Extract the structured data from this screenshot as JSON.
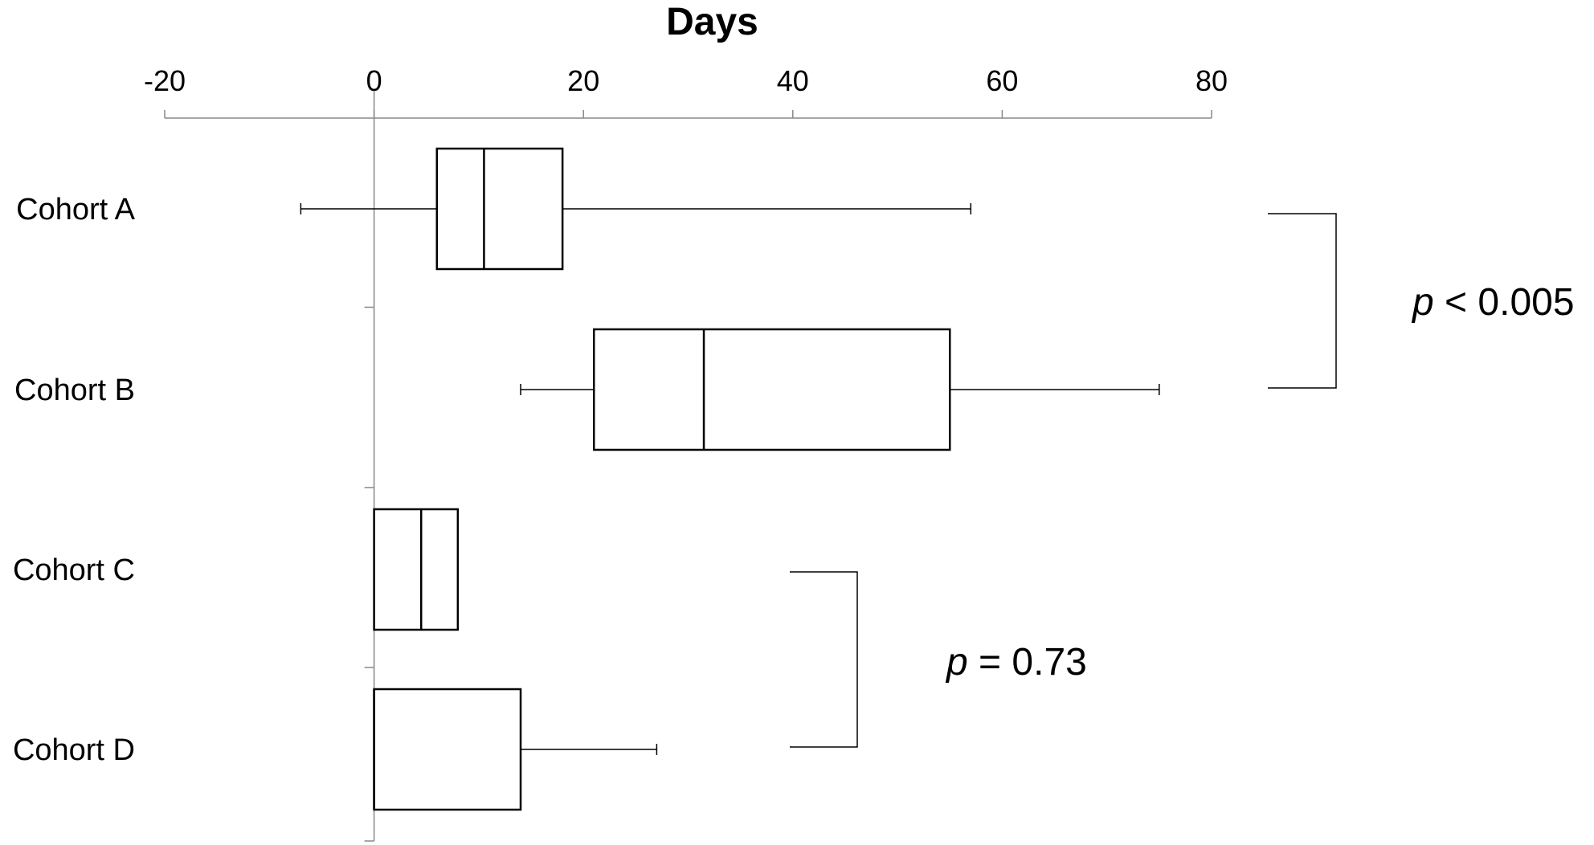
{
  "chart_data": {
    "type": "boxplot",
    "orientation": "horizontal",
    "xlabel": "Days",
    "xlim": [
      -20,
      80
    ],
    "xticks": [
      -20,
      0,
      20,
      40,
      60,
      80
    ],
    "xtick_labels": [
      "-20",
      "0",
      "20",
      "40",
      "60",
      "80"
    ],
    "categories": [
      "Cohort A",
      "Cohort B",
      "Cohort C",
      "Cohort D"
    ],
    "series": [
      {
        "name": "Cohort A",
        "whisker_low": -7,
        "q1": 6,
        "median": 10.5,
        "q3": 18,
        "whisker_high": 57
      },
      {
        "name": "Cohort B",
        "whisker_low": 14,
        "q1": 21,
        "median": 31.5,
        "q3": 55,
        "whisker_high": 75
      },
      {
        "name": "Cohort C",
        "whisker_low": 0,
        "q1": 0,
        "median": 4.5,
        "q3": 8,
        "whisker_high": 8
      },
      {
        "name": "Cohort D",
        "whisker_low": 0,
        "q1": 0,
        "median": 0,
        "q3": 14,
        "whisker_high": 27
      }
    ],
    "annotations": [
      {
        "from": "Cohort A",
        "to": "Cohort B",
        "p_symbol": "p",
        "p_text": " < 0.005"
      },
      {
        "from": "Cohort C",
        "to": "Cohort D",
        "p_symbol": "p",
        "p_text": " = 0.73"
      }
    ]
  }
}
